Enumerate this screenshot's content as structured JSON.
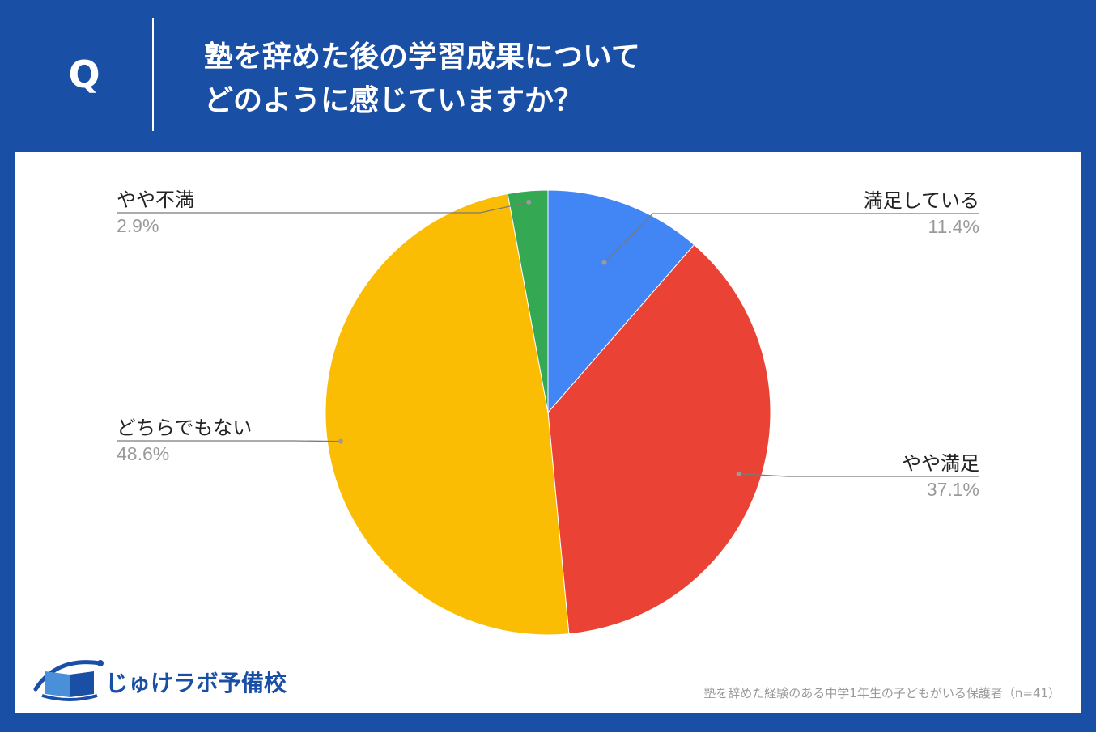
{
  "header": {
    "q_letter": "Q",
    "title_line1": "塾を辞めた後の学習成果について",
    "title_line2": "どのように感じていますか？"
  },
  "chart_data": {
    "type": "pie",
    "categories": [
      "満足している",
      "やや満足",
      "どちらでもない",
      "やや不満"
    ],
    "values": [
      11.4,
      37.1,
      48.6,
      2.9
    ],
    "value_labels": [
      "11.4%",
      "37.1%",
      "48.6%",
      "2.9%"
    ],
    "colors": [
      "#4285f4",
      "#ea4335",
      "#fbbc04",
      "#34a853"
    ],
    "start_angle": "12 o'clock",
    "direction": "clockwise",
    "legend": "none"
  },
  "branding": {
    "logo_text": "じゅけラボ予備校",
    "colors": {
      "background": "#1a4fa6",
      "panel": "#ffffff"
    }
  },
  "footnote": "塾を辞めた経験のある中学1年生の子どもがいる保護者（n=41）"
}
